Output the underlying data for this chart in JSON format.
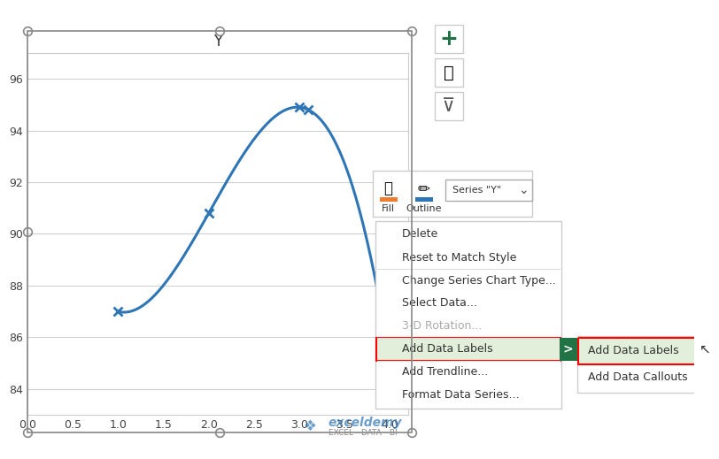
{
  "title": "Y",
  "x_data": [
    1,
    2,
    3,
    3.1,
    4
  ],
  "y_data": [
    87,
    90.8,
    94.9,
    94.8,
    85
  ],
  "xlim": [
    0,
    4.2
  ],
  "ylim": [
    83,
    97
  ],
  "xticks": [
    0,
    0.5,
    1.0,
    1.5,
    2.0,
    2.5,
    3.0,
    3.5,
    4.0
  ],
  "yticks": [
    84,
    86,
    88,
    90,
    92,
    94,
    96
  ],
  "line_color": "#2E75B6",
  "marker_color": "#2E75B6",
  "bg_chart": "#FFFFFF",
  "bg_figure": "#FFFFFF",
  "grid_color": "#D0D0D0",
  "chart_border_color": "#AAAAAA",
  "context_menu_items": [
    "Delete",
    "Reset to Match Style",
    "Change Series Chart Type...",
    "Select Data...",
    "3-D Rotation...",
    "Add Data Labels",
    "Add Trendline...",
    "Format Data Series..."
  ],
  "submenu_items": [
    "Add Data Labels",
    "Add Data Callouts"
  ],
  "series_dropdown": "Series \"Y\"",
  "fill_label": "Fill",
  "outline_label": "Outline",
  "highlight_item": "Add Data Labels",
  "highlight_color": "#E2EFDA",
  "highlight_border": "#FF0000",
  "arrow_bg": "#217346",
  "separator_items": [
    1,
    4,
    5
  ],
  "grayed_item": "3-D Rotation...",
  "toolbar_icons_present": true,
  "watermark_text": "exceldemy",
  "watermark_subtext": "EXCEL - DATA - BI"
}
